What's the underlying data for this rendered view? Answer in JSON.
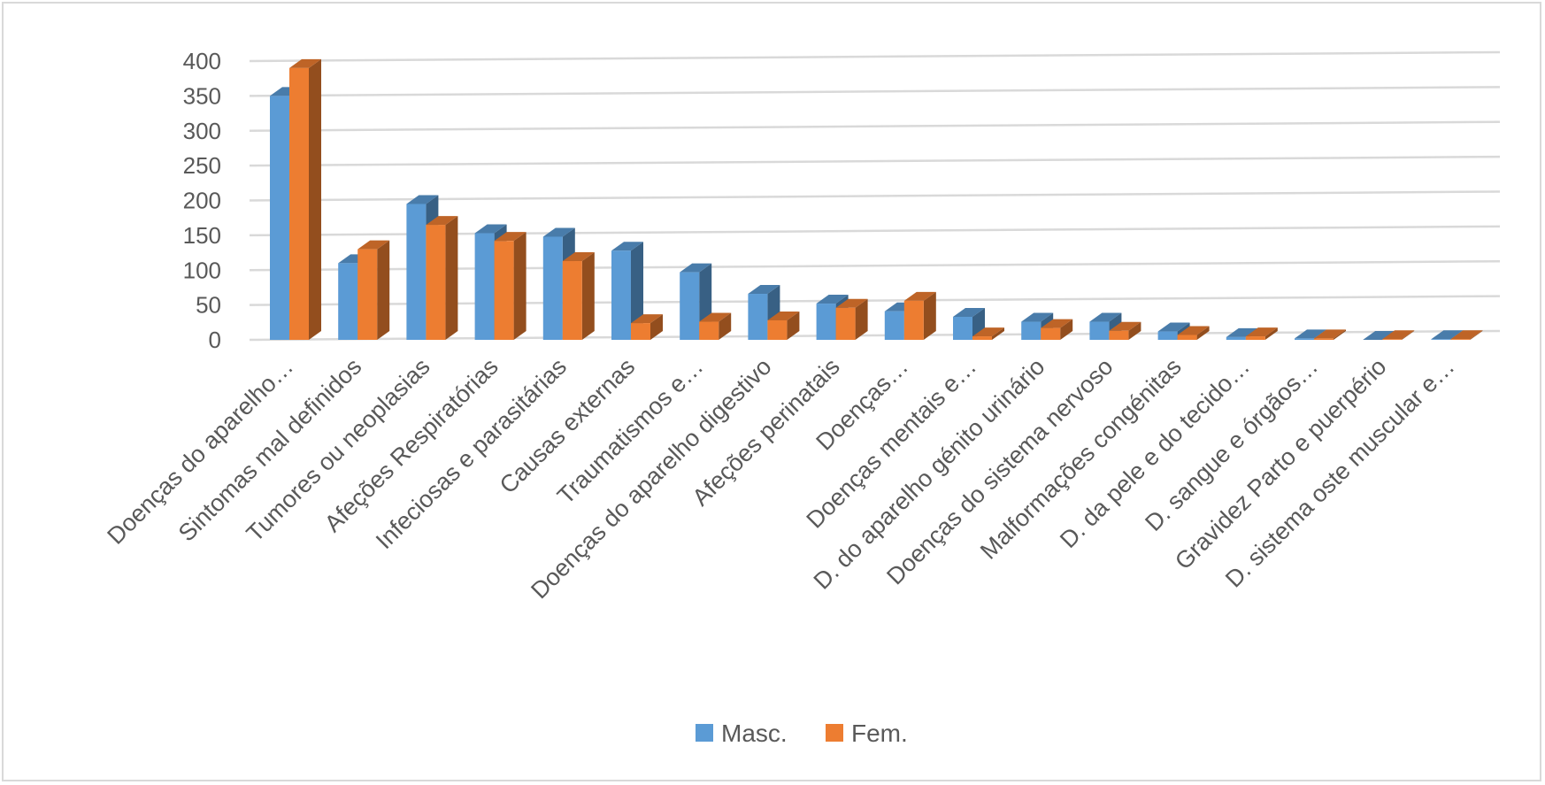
{
  "chart_data": {
    "type": "bar",
    "style": "3d-clustered-column",
    "categories": [
      "Doenças do aparelho…",
      "Sintomas mal definidos",
      "Tumores ou neoplasias",
      "Afeções Respiratórias",
      "Infeciosas e parasitárias",
      "Causas externas",
      "Traumatismos e…",
      "Doenças do aparelho digestivo",
      "Afeções perinatais",
      "Doenças…",
      "Doenças mentais e…",
      "D. do aparelho génito urinário",
      "Doenças do sistema nervoso",
      "Malformações congénitas",
      "D. da pele e do tecido…",
      "D. sangue e órgãos…",
      "Gravidez Parto e puerpério",
      "D. sistema oste muscular e…"
    ],
    "series": [
      {
        "name": "Masc.",
        "color": "#5B9BD5",
        "values": [
          350,
          110,
          195,
          153,
          148,
          128,
          97,
          66,
          52,
          41,
          33,
          26,
          26,
          12,
          4,
          2,
          0,
          1
        ]
      },
      {
        "name": "Fem.",
        "color": "#ED7D31",
        "values": [
          390,
          130,
          165,
          142,
          113,
          24,
          26,
          28,
          46,
          56,
          5,
          17,
          13,
          7,
          5,
          2,
          1,
          1
        ]
      }
    ],
    "y_ticks": [
      "0",
      "50",
      "100",
      "150",
      "200",
      "250",
      "300",
      "350",
      "400"
    ],
    "ylim": [
      0,
      400
    ],
    "grid": true,
    "legend_position": "bottom"
  }
}
